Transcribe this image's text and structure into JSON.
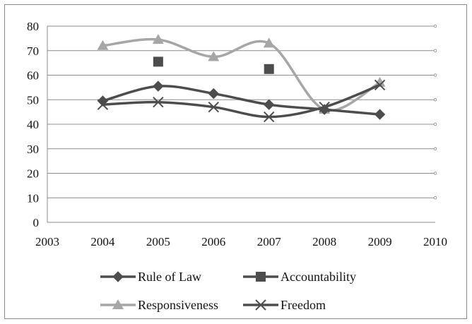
{
  "chart_data": {
    "type": "line",
    "title": "",
    "xlabel": "",
    "ylabel": "",
    "xlim": [
      2003,
      2010
    ],
    "ylim": [
      0,
      80
    ],
    "x_ticks": [
      "2003",
      "2004",
      "2005",
      "2006",
      "2007",
      "2008",
      "2009",
      "2010"
    ],
    "y_ticks": [
      "0",
      "10",
      "20",
      "30",
      "40",
      "50",
      "60",
      "70",
      "80"
    ],
    "grid": true,
    "legend_position": "bottom",
    "series": [
      {
        "name": "Rule of Law",
        "marker": "diamond",
        "color": "#4d4d4d",
        "line": true,
        "x": [
          2004,
          2005,
          2006,
          2007,
          2008,
          2009
        ],
        "y": [
          49.5,
          55.5,
          52.5,
          48,
          46,
          44
        ]
      },
      {
        "name": "Accountability",
        "marker": "square",
        "color": "#4d4d4d",
        "line": false,
        "x": [
          2005,
          2007
        ],
        "y": [
          65.5,
          62.5
        ]
      },
      {
        "name": "Responsiveness",
        "marker": "triangle",
        "color": "#a6a6a6",
        "line": true,
        "x": [
          2004,
          2005,
          2006,
          2007,
          2008,
          2009
        ],
        "y": [
          72,
          74.5,
          67.5,
          73,
          46,
          57
        ]
      },
      {
        "name": "Freedom",
        "marker": "x",
        "color": "#4d4d4d",
        "line": true,
        "x": [
          2004,
          2005,
          2006,
          2007,
          2008,
          2009
        ],
        "y": [
          48,
          49,
          47,
          43,
          47,
          56
        ]
      }
    ]
  }
}
